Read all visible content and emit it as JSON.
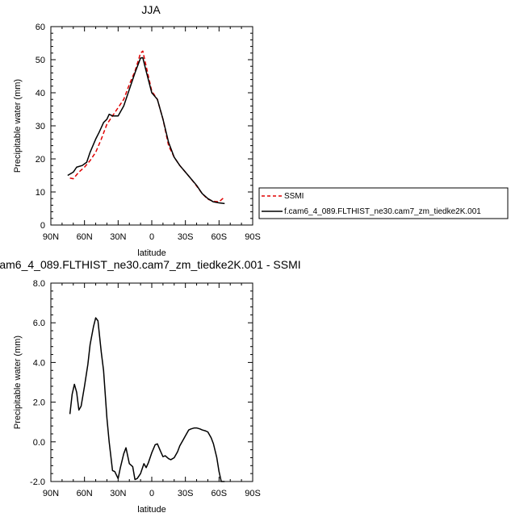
{
  "chart_data": [
    {
      "type": "line",
      "title": "JJA",
      "xlabel": "latitude",
      "ylabel": "Precipitable water (mm)",
      "xlim": [
        90,
        -90
      ],
      "ylim": [
        0,
        60
      ],
      "xticks": [
        90,
        60,
        30,
        0,
        -30,
        -60,
        -90
      ],
      "xtick_labels": [
        "90N",
        "60N",
        "30N",
        "0",
        "30S",
        "60S",
        "90S"
      ],
      "yticks": [
        0,
        10,
        20,
        30,
        40,
        50,
        60
      ],
      "ytick_labels": [
        "0",
        "10",
        "20",
        "30",
        "40",
        "50",
        "60"
      ],
      "grid": false,
      "legend_position": "right",
      "series": [
        {
          "name": "SSMI",
          "color": "#e00000",
          "dash": "dashed",
          "x": [
            73,
            70,
            65,
            60,
            55,
            50,
            45,
            40,
            35,
            30,
            25,
            20,
            15,
            10,
            8,
            5,
            0,
            -5,
            -10,
            -15,
            -20,
            -25,
            -30,
            -35,
            -40,
            -45,
            -50,
            -55,
            -60,
            -65
          ],
          "y": [
            14.2,
            14.0,
            16.0,
            17.5,
            19.5,
            22.0,
            26.0,
            30.5,
            33.0,
            35.5,
            38.0,
            42.5,
            46.5,
            52.0,
            52.6,
            48.0,
            40.5,
            38.0,
            32.0,
            24.0,
            20.5,
            18.0,
            16.0,
            14.0,
            11.8,
            9.5,
            7.8,
            7.2,
            7.0,
            8.5
          ]
        },
        {
          "name": "f.cam6_4_089.FLTHIST_ne30.cam7_zm_tiedke2K.001",
          "color": "#000000",
          "dash": "solid",
          "x": [
            75,
            70,
            67,
            62,
            58,
            55,
            50,
            47,
            43,
            40,
            38,
            35,
            30,
            25,
            20,
            15,
            10,
            8,
            5,
            0,
            -5,
            -10,
            -15,
            -20,
            -25,
            -30,
            -35,
            -40,
            -45,
            -50,
            -55,
            -60,
            -65
          ],
          "y": [
            15.0,
            16.0,
            17.5,
            18.0,
            19.0,
            22.0,
            26.0,
            28.0,
            31.0,
            32.0,
            33.5,
            33.0,
            33.0,
            36.0,
            41.0,
            46.0,
            50.5,
            50.6,
            46.5,
            40.0,
            38.0,
            32.0,
            25.0,
            20.5,
            18.0,
            16.0,
            14.0,
            12.0,
            9.5,
            8.0,
            7.0,
            6.7,
            6.5
          ]
        }
      ]
    },
    {
      "type": "line",
      "title": "am6_4_089.FLTHIST_ne30.cam7_zm_tiedke2K.001 - SSMI",
      "xlabel": "latitude",
      "ylabel": "Precipitable water (mm)",
      "xlim": [
        90,
        -90
      ],
      "ylim": [
        -2,
        8
      ],
      "xticks": [
        90,
        60,
        30,
        0,
        -30,
        -60,
        -90
      ],
      "xtick_labels": [
        "90N",
        "60N",
        "30N",
        "0",
        "30S",
        "60S",
        "90S"
      ],
      "yticks": [
        -2,
        0,
        2,
        4,
        6,
        8
      ],
      "ytick_labels": [
        "-2.0",
        "0.0",
        "2.0",
        "4.0",
        "6.0",
        "8.0"
      ],
      "grid": false,
      "series": [
        {
          "color": "#000000",
          "dash": "solid",
          "x": [
            73,
            71,
            69,
            67,
            65,
            63,
            60,
            57,
            55,
            52,
            50,
            48,
            45,
            43,
            40,
            38,
            35,
            33,
            30,
            28,
            25,
            23,
            20,
            17,
            15,
            13,
            10,
            7,
            5,
            3,
            0,
            -3,
            -5,
            -8,
            -10,
            -12,
            -15,
            -17,
            -20,
            -23,
            -25,
            -28,
            -30,
            -33,
            -35,
            -38,
            -40,
            -43,
            -45,
            -48,
            -50,
            -53,
            -55,
            -58,
            -60,
            -62,
            -64,
            -65
          ],
          "y": [
            1.4,
            2.4,
            2.9,
            2.5,
            1.6,
            1.8,
            2.8,
            3.9,
            4.9,
            5.8,
            6.25,
            6.1,
            4.5,
            3.6,
            1.2,
            0.0,
            -1.45,
            -1.5,
            -1.85,
            -1.3,
            -0.6,
            -0.3,
            -1.1,
            -1.25,
            -1.9,
            -1.85,
            -1.6,
            -1.1,
            -1.3,
            -1.05,
            -0.55,
            -0.15,
            -0.1,
            -0.5,
            -0.75,
            -0.7,
            -0.85,
            -0.9,
            -0.8,
            -0.5,
            -0.2,
            0.1,
            0.3,
            0.6,
            0.65,
            0.7,
            0.7,
            0.65,
            0.6,
            0.55,
            0.5,
            0.2,
            -0.1,
            -0.8,
            -1.5,
            -2.0,
            -2.0,
            -2.0
          ]
        }
      ]
    }
  ]
}
